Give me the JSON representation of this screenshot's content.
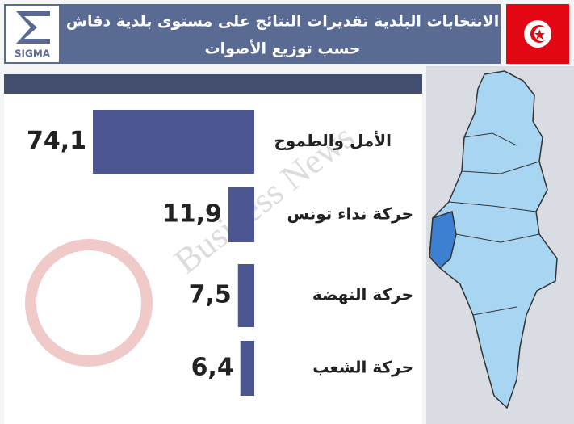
{
  "chart_data": {
    "type": "hbar",
    "title": [
      "الانتخابات البلدية تقديرات النتائج على مستوى بلدية دقاش",
      "حسب توزيع الأصوات"
    ],
    "logo": "SIGMA",
    "watermark": "Business News",
    "categories": [
      "الأمل والطموح",
      "حركة نداء تونس",
      "حركة النهضة",
      "حركة الشعب"
    ],
    "values": [
      74.1,
      11.9,
      7.5,
      6.4
    ],
    "value_labels": [
      "74,1",
      "11,9",
      "7,5",
      "6,4"
    ],
    "color": "#4c5792"
  }
}
